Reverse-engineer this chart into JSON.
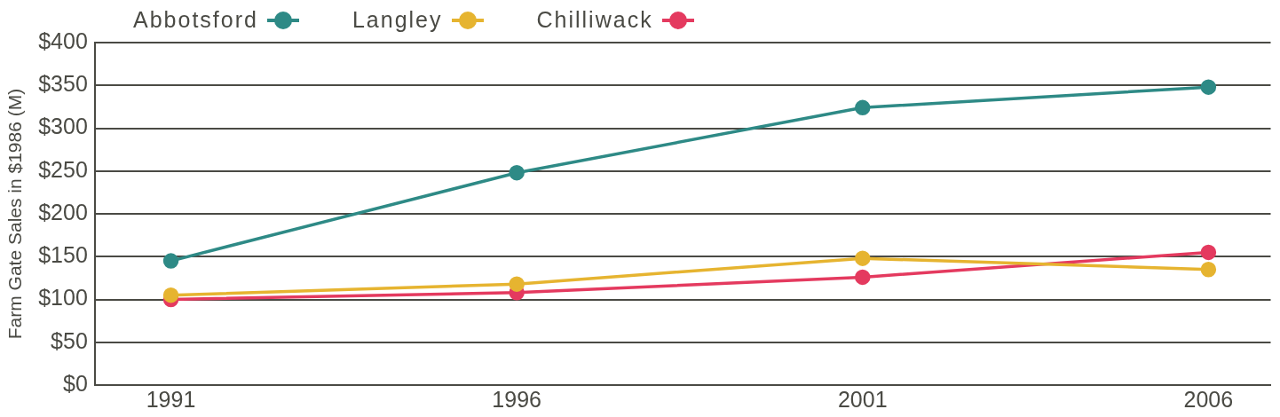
{
  "chart_data": {
    "type": "line",
    "ylabel": "Farm Gate Sales in $1986 (M)",
    "x": [
      1991,
      1996,
      2001,
      2006
    ],
    "xlim": [
      1989.9,
      2006.9
    ],
    "xticks": [
      1991,
      1996,
      2001,
      2006
    ],
    "ylim": [
      0,
      400
    ],
    "yticks": [
      {
        "value": 0,
        "label": "$0"
      },
      {
        "value": 50,
        "label": "$50"
      },
      {
        "value": 100,
        "label": "$100"
      },
      {
        "value": 150,
        "label": "$150"
      },
      {
        "value": 200,
        "label": "$200"
      },
      {
        "value": 250,
        "label": "$250"
      },
      {
        "value": 300,
        "label": "$300"
      },
      {
        "value": 350,
        "label": "$350"
      },
      {
        "value": 400,
        "label": "$400"
      }
    ],
    "grid": "y",
    "legend": "top left",
    "marker": "circle",
    "line_style": "solid",
    "series": [
      {
        "name": "Abbotsford",
        "color": "#2e8a86",
        "values": [
          145,
          248,
          324,
          348
        ]
      },
      {
        "name": "Langley",
        "color": "#e6b430",
        "values": [
          105,
          118,
          148,
          135
        ]
      },
      {
        "name": "Chilliwack",
        "color": "#e43a5f",
        "values": [
          100,
          108,
          126,
          155
        ]
      }
    ]
  }
}
